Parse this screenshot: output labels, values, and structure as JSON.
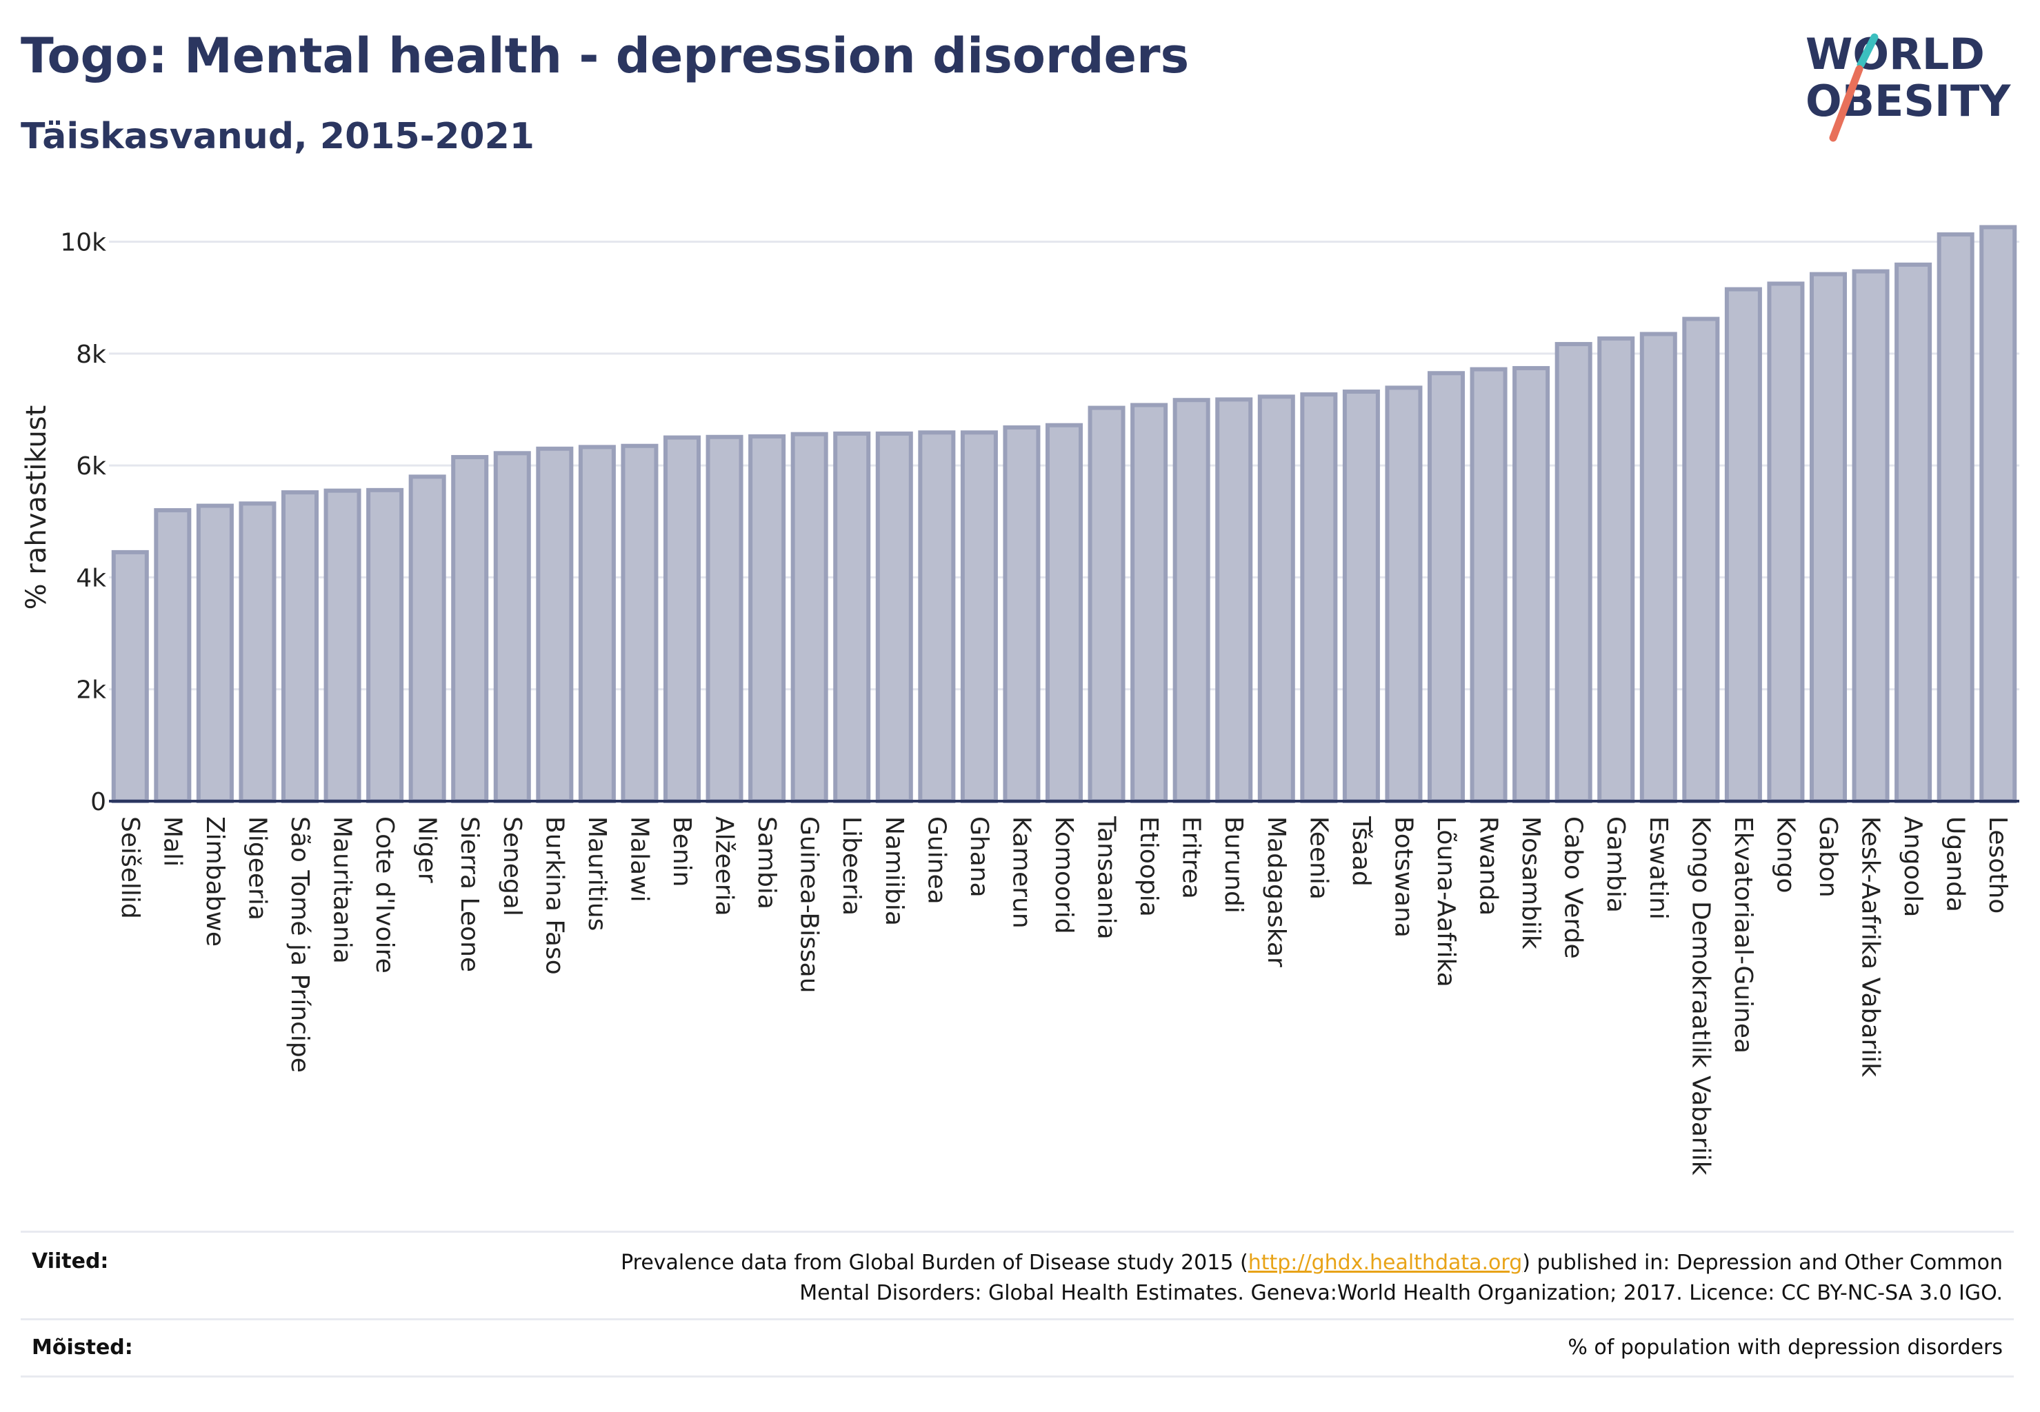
{
  "header": {
    "title": "Togo: Mental health - depression disorders",
    "subtitle": "Täiskasvanud, 2015-2021"
  },
  "logo": {
    "line1": "WORLD",
    "line2": "OBESITY",
    "accent_teal": "#3bbfbf",
    "accent_coral": "#e8705a",
    "text_color": "#2b3660"
  },
  "chart_data": {
    "type": "bar",
    "ylabel": "% rahvastikust",
    "xlabel": "",
    "ylim": [
      0,
      10500
    ],
    "yticks": [
      0,
      2000,
      4000,
      6000,
      8000,
      10000
    ],
    "ytick_labels": [
      "0",
      "2k",
      "4k",
      "6k",
      "8k",
      "10k"
    ],
    "grid": true,
    "bar_color": "#babecf",
    "bar_edge_color": "#9aa0ba",
    "categories": [
      "Seišellid",
      "Mali",
      "Zimbabwe",
      "Nigeeria",
      "São Tomé ja Príncipe",
      "Mauritaania",
      "Cote d'Ivoire",
      "Niger",
      "Sierra Leone",
      "Senegal",
      "Burkina Faso",
      "Mauritius",
      "Malawi",
      "Benin",
      "Alžeeria",
      "Sambia",
      "Guinea-Bissau",
      "Libeeria",
      "Namiibia",
      "Guinea",
      "Ghana",
      "Kamerun",
      "Komoorid",
      "Tansaania",
      "Etioopia",
      "Eritrea",
      "Burundi",
      "Madagaskar",
      "Keenia",
      "Tšaad",
      "Botswana",
      "Lõuna-Aafrika",
      "Rwanda",
      "Mosambiik",
      "Cabo Verde",
      "Gambia",
      "Eswatini",
      "Kongo Demokraatlik Vabariik",
      "Ekvatoriaal-Guinea",
      "Kongo",
      "Gabon",
      "Kesk-Aafrika Vabariik",
      "Angoola",
      "Uganda",
      "Lesotho"
    ],
    "values": [
      4450,
      5200,
      5280,
      5320,
      5520,
      5550,
      5560,
      5800,
      6150,
      6220,
      6300,
      6330,
      6350,
      6500,
      6510,
      6520,
      6560,
      6570,
      6570,
      6590,
      6590,
      6680,
      6720,
      7030,
      7080,
      7170,
      7180,
      7230,
      7270,
      7320,
      7390,
      7650,
      7720,
      7740,
      8170,
      8270,
      8350,
      8620,
      9150,
      9250,
      9420,
      9470,
      9590,
      10130,
      10260
    ]
  },
  "footer": {
    "refs_label": "Viited:",
    "refs_text_before": "Prevalence data from Global Burden of Disease study 2015 (",
    "refs_link": "http://ghdx.healthdata.org",
    "refs_text_after": ") published in: Depression and Other Common",
    "refs_text_line2": "Mental Disorders: Global Health Estimates. Geneva:World Health Organization; 2017. Licence: CC BY-NC-SA 3.0 IGO.",
    "defs_label": "Mõisted:",
    "defs_text": "% of population with depression disorders"
  }
}
